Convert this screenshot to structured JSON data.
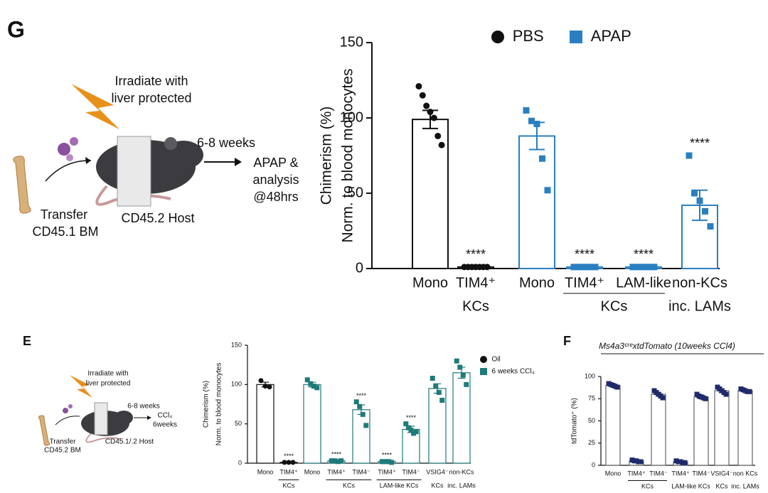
{
  "panel_letters": [
    "G",
    "E",
    "F"
  ],
  "schematics": [
    {
      "irradiate": [
        "Irradiate with",
        "liver protected"
      ],
      "interval": "6-8 weeks",
      "outcome": [
        "APAP &",
        "analysis",
        "@48hrs"
      ],
      "donor": [
        "Transfer",
        "CD45.1 BM"
      ],
      "host": "CD45.2 Host"
    },
    {
      "irradiate": [
        "Irradiate with",
        "liver protected"
      ],
      "interval": "6-8 weeks",
      "outcome": [
        "CCl₄",
        "6weeks"
      ],
      "donor": [
        "Transfer",
        "CD45.2 BM"
      ],
      "host": "CD45.1/.2 Host"
    }
  ],
  "chart_data": [
    {
      "type": "bar",
      "y_label": [
        "Chimerism (%)",
        "Norm. to blood monocytes"
      ],
      "categories": [
        "Mono",
        "TIM4⁺",
        "Mono",
        "TIM4⁺",
        "LAM-like",
        "non-KCs"
      ],
      "groups": [
        {
          "label": "KCs",
          "categories": [
            1
          ],
          "underline": false
        },
        {
          "label": "KCs",
          "categories": [
            3,
            4
          ],
          "underline": true
        },
        {
          "label": "inc. LAMs",
          "categories": [
            5
          ],
          "underline": false
        }
      ],
      "series": [
        {
          "name": "PBS",
          "color": "#111111",
          "marker": "circle",
          "values": [
            99,
            1,
            null,
            null,
            null,
            null
          ],
          "errors": [
            6,
            0.3,
            null,
            null,
            null,
            null
          ],
          "points": [
            [
              121,
              115,
              108,
              104,
              100,
              88,
              82
            ],
            [
              1,
              1,
              1,
              1,
              1,
              1,
              1
            ],
            null,
            null,
            null,
            null
          ]
        },
        {
          "name": "APAP",
          "color": "#2a7fc0",
          "marker": "square",
          "values": [
            null,
            null,
            88,
            1,
            1,
            42
          ],
          "errors": [
            null,
            null,
            9,
            0.3,
            0.3,
            10
          ],
          "points": [
            null,
            null,
            [
              105,
              98,
              96,
              73,
              52
            ],
            [
              1,
              1,
              1,
              1,
              1
            ],
            [
              1,
              1,
              1,
              1,
              1
            ],
            [
              75,
              50,
              45,
              38,
              28
            ]
          ]
        }
      ],
      "annotations": [
        {
          "text": "****",
          "category": 1
        },
        {
          "text": "****",
          "category": 3
        },
        {
          "text": "****",
          "category": 4
        },
        {
          "text": "****",
          "category": 5
        }
      ],
      "ylim": [
        0,
        150
      ],
      "yticks": [
        0,
        50,
        100,
        150
      ],
      "legend": "top"
    },
    {
      "type": "bar",
      "y_label": [
        "Chimerism (%)",
        "Norm. to blood monocytes"
      ],
      "categories": [
        "Mono",
        "TIM4⁺",
        "Mono",
        "TIM4⁺",
        "TIM4⁻",
        "TIM4⁺",
        "TIM4⁻",
        "VSIG4⁻",
        "non-KCs"
      ],
      "groups": [
        {
          "label": "KCs",
          "categories": [
            1
          ],
          "underline": true
        },
        {
          "label": "KCs",
          "categories": [
            3,
            4
          ],
          "underline": true
        },
        {
          "label": "LAM-like KCs",
          "categories": [
            5,
            6
          ],
          "underline": true
        },
        {
          "label": "KCs",
          "categories": [
            7
          ],
          "underline": false
        },
        {
          "label": "inc. LAMs",
          "categories": [
            8
          ],
          "underline": false
        }
      ],
      "series": [
        {
          "name": "Oil",
          "color": "#111111",
          "marker": "circle",
          "values": [
            100,
            1,
            null,
            null,
            null,
            null,
            null,
            null,
            null
          ],
          "errors": [
            3,
            0.3,
            null,
            null,
            null,
            null,
            null,
            null,
            null
          ],
          "points": [
            [
              105,
              98,
              97
            ],
            [
              1,
              1,
              1
            ],
            null,
            null,
            null,
            null,
            null,
            null,
            null
          ]
        },
        {
          "name": "6 weeks CCl₄",
          "color": "#1f7a7a",
          "marker": "square",
          "values": [
            null,
            null,
            100,
            3,
            68,
            2,
            43,
            95,
            115
          ],
          "errors": [
            null,
            null,
            3,
            0.5,
            6,
            0.3,
            4,
            6,
            7
          ],
          "points": [
            null,
            null,
            [
              106,
              101,
              98,
              96
            ],
            [
              3,
              3,
              2,
              3
            ],
            [
              78,
              72,
              62,
              48
            ],
            [
              2,
              2,
              2,
              1
            ],
            [
              50,
              45,
              42,
              38,
              40
            ],
            [
              108,
              98,
              90,
              80
            ],
            [
              130,
              122,
              112,
              100
            ]
          ]
        }
      ],
      "annotations": [
        {
          "text": "****",
          "category": 1
        },
        {
          "text": "****",
          "category": 3
        },
        {
          "text": "****",
          "category": 4
        },
        {
          "text": "****",
          "category": 5
        },
        {
          "text": "****",
          "category": 6
        }
      ],
      "ylim": [
        0,
        150
      ],
      "yticks": [
        0,
        50,
        100,
        150
      ],
      "legend": "upper right"
    },
    {
      "type": "bar",
      "title": "Ms4a3ᶜʳᵉxtdTomato (10weeks CCl4)",
      "y_label": [
        "tdTomato⁺ (%)"
      ],
      "categories": [
        "Mono",
        "TIM4⁺",
        "TIM4⁻",
        "TIM4⁺",
        "TIM4⁻",
        "VSIG4⁻",
        "non KCs"
      ],
      "groups": [
        {
          "label": "KCs",
          "categories": [
            1,
            2
          ],
          "underline": true
        },
        {
          "label": "LAM-like KCs",
          "categories": [
            3,
            4
          ],
          "underline": false
        },
        {
          "label": "KCs",
          "categories": [
            5
          ],
          "underline": false
        },
        {
          "label": "inc. LAMs",
          "categories": [
            6
          ],
          "underline": false
        }
      ],
      "series": [
        {
          "color": "#1f2a6b",
          "bar_color": "#666666",
          "marker": "square",
          "values": [
            90,
            5,
            80,
            4,
            77,
            84,
            84
          ],
          "errors": [
            1,
            0.5,
            2,
            0.5,
            2,
            2,
            1
          ],
          "points": [
            [
              92,
              91,
              90,
              89,
              88
            ],
            [
              6,
              5,
              5,
              4,
              4
            ],
            [
              84,
              82,
              80,
              78,
              76
            ],
            [
              5,
              4,
              4,
              3,
              3
            ],
            [
              80,
              78,
              77,
              76,
              75
            ],
            [
              88,
              86,
              84,
              82,
              80
            ],
            [
              86,
              85,
              84,
              83,
              83
            ]
          ]
        }
      ],
      "ylim": [
        0,
        100
      ],
      "yticks": [
        0,
        25,
        50,
        75,
        100
      ]
    }
  ]
}
